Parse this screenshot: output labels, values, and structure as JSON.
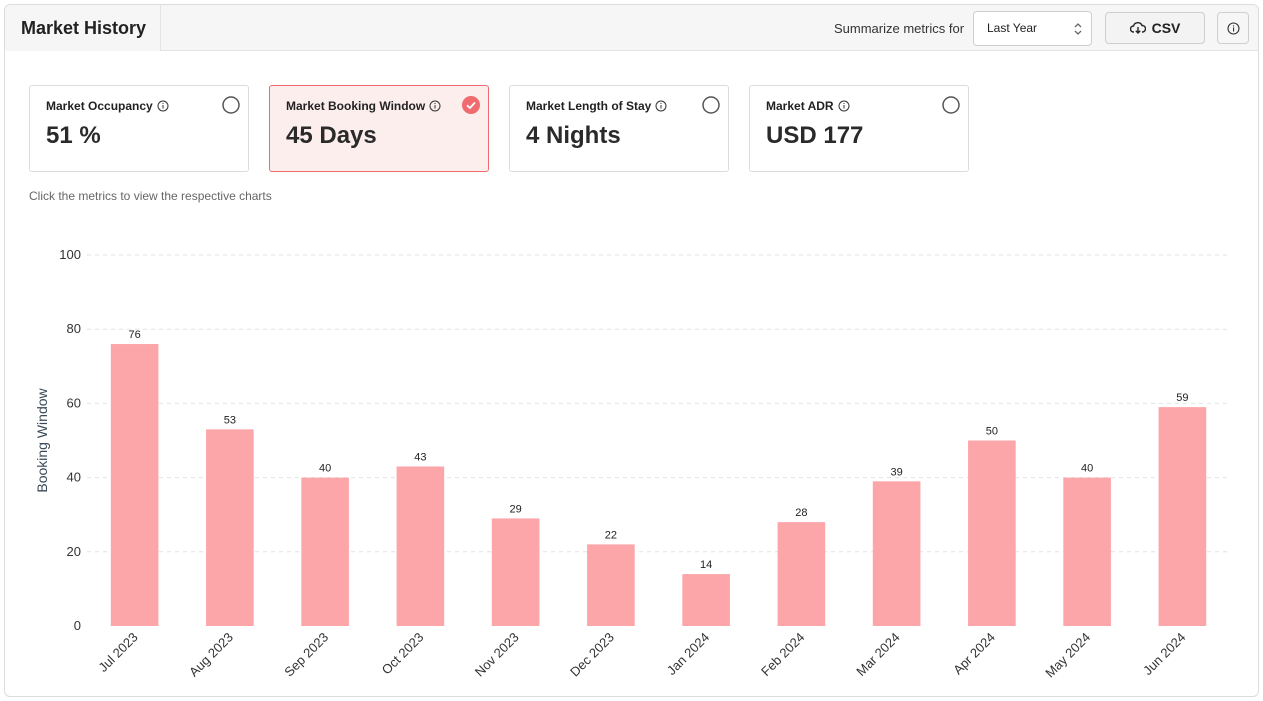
{
  "header": {
    "title": "Market History",
    "summarize_label": "Summarize metrics for",
    "period_select": "Last Year",
    "csv_label": "CSV"
  },
  "metrics": [
    {
      "label": "Market Occupancy",
      "value": "51 %",
      "selected": false
    },
    {
      "label": "Market Booking Window",
      "value": "45 Days",
      "selected": true
    },
    {
      "label": "Market Length of Stay",
      "value": "4 Nights",
      "selected": false
    },
    {
      "label": "Market ADR",
      "value": "USD 177",
      "selected": false
    }
  ],
  "hint": "Click the metrics to view the respective charts",
  "colors": {
    "bar": "#fca6aa",
    "accent": "#ef6b6f"
  },
  "chart_data": {
    "type": "bar",
    "categories": [
      "Jul 2023",
      "Aug 2023",
      "Sep 2023",
      "Oct 2023",
      "Nov 2023",
      "Dec 2023",
      "Jan 2024",
      "Feb 2024",
      "Mar 2024",
      "Apr 2024",
      "May 2024",
      "Jun 2024"
    ],
    "values": [
      76,
      53,
      40,
      43,
      29,
      22,
      14,
      28,
      39,
      50,
      40,
      59
    ],
    "ylabel": "Booking Window",
    "ylim": [
      0,
      100
    ],
    "yticks": [
      0,
      20,
      40,
      60,
      80,
      100
    ],
    "grid": true,
    "data_labels": true
  }
}
